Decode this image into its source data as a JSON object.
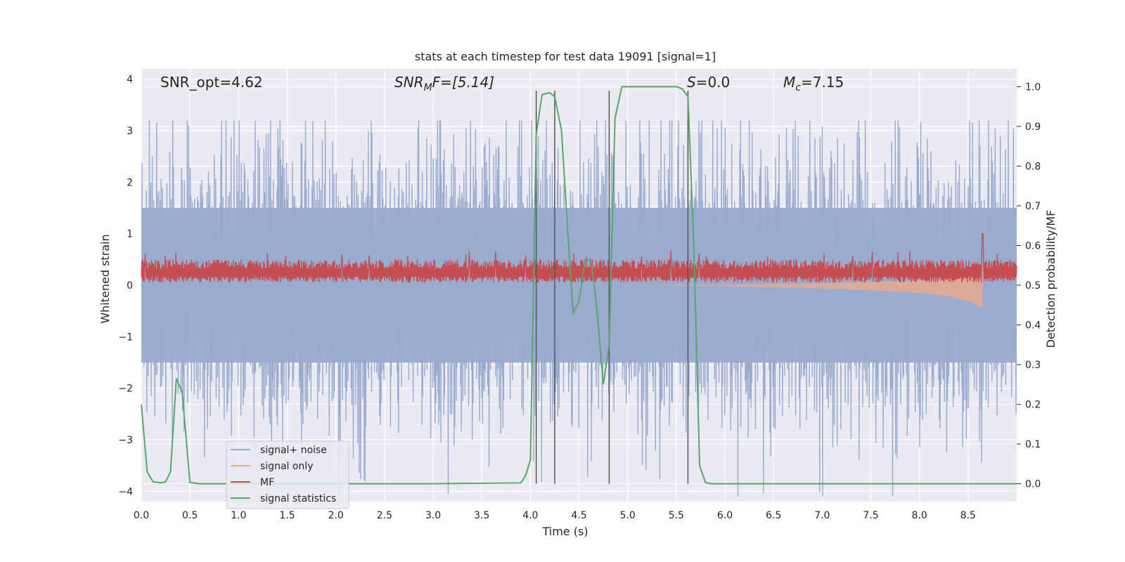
{
  "chart_data": {
    "type": "line",
    "title": "stats at each timestep for test data 19091 [signal=1]",
    "xlabel": "Time (s)",
    "ylabel_left": "Whitened strain",
    "ylabel_right": "Detection probability/MF",
    "xlim": [
      0,
      9.0
    ],
    "ylim_left": [
      -4.2,
      4.2
    ],
    "ylim_right": [
      -0.045,
      1.045
    ],
    "x_ticks": [
      "0.0",
      "0.5",
      "1.0",
      "1.5",
      "2.0",
      "2.5",
      "3.0",
      "3.5",
      "4.0",
      "4.5",
      "5.0",
      "5.5",
      "6.0",
      "6.5",
      "7.0",
      "7.5",
      "8.0",
      "8.5"
    ],
    "y_left_ticks": [
      "4",
      "3",
      "2",
      "1",
      "0",
      "−1",
      "−2",
      "−3",
      "−4"
    ],
    "y_right_ticks": [
      "1.0",
      "0.9",
      "0.8",
      "0.7",
      "0.6",
      "0.5",
      "0.4",
      "0.3",
      "0.2",
      "0.1",
      "0.0"
    ],
    "grid": true,
    "legend_placement": "lower-left",
    "annotations": {
      "snr_opt": "SNR_opt=4.62",
      "snr_mf_base": "SNR",
      "snr_mf_sub": "M",
      "snr_mf_rest": "F=[5.14]",
      "s_base": "S",
      "s_rest": "=0.0",
      "mc_base": "M",
      "mc_sub": "c",
      "mc_rest": "=7.15"
    },
    "vertical_lines_x": [
      4.06,
      4.25,
      4.81,
      5.62
    ],
    "series": [
      {
        "name": "signal+ noise",
        "color": "#9aabd0",
        "axis": "left",
        "envelope_upper_typical": 2.0,
        "envelope_lower_typical": -2.0
      },
      {
        "name": "signal only",
        "color": "#e8a98f",
        "axis": "left",
        "x": [
          5.0,
          6.0,
          7.0,
          7.5,
          8.0,
          8.3,
          8.5,
          8.65
        ],
        "lower": [
          0.0,
          -0.02,
          -0.06,
          -0.1,
          -0.15,
          -0.22,
          -0.3,
          -0.45
        ],
        "upper": [
          0.0,
          0.01,
          0.04,
          0.06,
          0.09,
          0.14,
          0.2,
          0.3
        ]
      },
      {
        "name": "MF",
        "color": "#c44e52",
        "axis": "left",
        "baseline_low": 0.05,
        "baseline_high": 0.5
      },
      {
        "name": "signal statistics",
        "color": "#55a868",
        "axis": "right",
        "x": [
          0.0,
          0.06,
          0.12,
          0.2,
          0.25,
          0.3,
          0.36,
          0.42,
          0.5,
          0.6,
          1.0,
          2.0,
          3.0,
          3.9,
          3.95,
          4.0,
          4.06,
          4.12,
          4.2,
          4.25,
          4.32,
          4.38,
          4.44,
          4.5,
          4.56,
          4.62,
          4.68,
          4.75,
          4.81,
          4.87,
          4.94,
          5.0,
          5.5,
          5.56,
          5.62,
          5.68,
          5.74,
          5.8,
          5.86,
          6.0,
          7.0,
          8.0,
          9.0
        ],
        "y": [
          0.2,
          0.03,
          0.005,
          0.002,
          0.005,
          0.03,
          0.265,
          0.23,
          0.003,
          0.0,
          0.0,
          0.0,
          0.0,
          0.002,
          0.02,
          0.06,
          0.88,
          0.98,
          0.985,
          0.975,
          0.89,
          0.65,
          0.43,
          0.46,
          0.56,
          0.565,
          0.45,
          0.25,
          0.35,
          0.92,
          1.0,
          1.0,
          1.0,
          0.995,
          0.975,
          0.6,
          0.045,
          0.003,
          0.0,
          0.0,
          0.0,
          0.0,
          0.0
        ]
      }
    ]
  }
}
